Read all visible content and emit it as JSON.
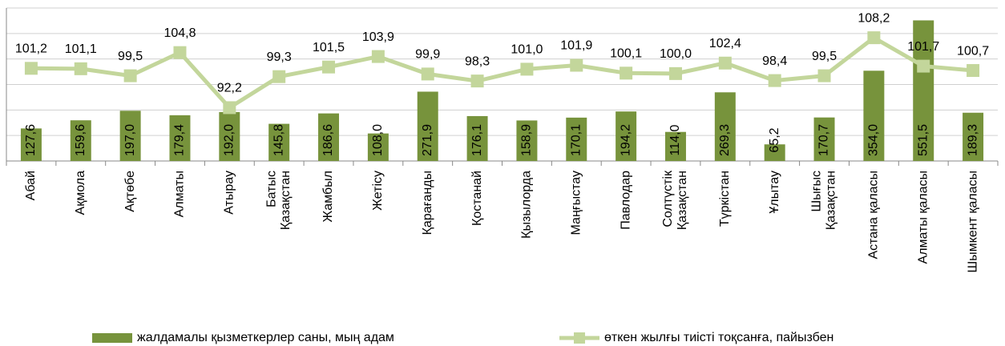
{
  "chart_data": {
    "type": "bar_line",
    "categories": [
      "Абай",
      "Ақмола",
      "Ақтөбе",
      "Алматы",
      "Атырау",
      "Батыс\nҚазақстан",
      "Жамбыл",
      "Жетісу",
      "Қарағанды",
      "Қостанай",
      "Қызылорда",
      "Маңғыстау",
      "Павлодар",
      "Солтүстік\nҚазақстан",
      "Түркістан",
      "Ұлытау",
      "Шығыс\nҚазақстан",
      "Астана қаласы",
      "Алматы қаласы",
      "Шымкент қаласы"
    ],
    "series": [
      {
        "name": "жалдамалы қызметкерлер саны, мың адам",
        "type": "bar",
        "color": "#77933c",
        "values": [
          127.6,
          159.6,
          197.0,
          179.4,
          192.0,
          145.8,
          186.6,
          108.0,
          271.9,
          176.1,
          158.9,
          170.1,
          194.2,
          114.0,
          269.3,
          65.2,
          170.7,
          354.0,
          551.5,
          189.3
        ],
        "value_labels": [
          "127,6",
          "159,6",
          "197,0",
          "179,4",
          "192,0",
          "145,8",
          "186,6",
          "108,0",
          "271,9",
          "176,1",
          "158,9",
          "170,1",
          "194,2",
          "114,0",
          "269,3",
          "65,2",
          "170,7",
          "354,0",
          "551,5",
          "189,3"
        ]
      },
      {
        "name": "өткен жылғы тиісті тоқсанға, пайызбен",
        "type": "line",
        "axis": "y2",
        "color": "#c3d69b",
        "values": [
          101.2,
          101.1,
          99.5,
          104.8,
          92.2,
          99.3,
          101.5,
          103.9,
          99.9,
          98.3,
          101.0,
          101.9,
          100.1,
          100.0,
          102.4,
          98.4,
          99.5,
          108.2,
          101.7,
          100.7
        ],
        "value_labels": [
          "101,2",
          "101,1",
          "99,5",
          "104,8",
          "92,2",
          "99,3",
          "101,5",
          "103,9",
          "99,9",
          "98,3",
          "101,0",
          "101,9",
          "100,1",
          "100,0",
          "102,4",
          "98,4",
          "99,5",
          "108,2",
          "101,7",
          "100,7"
        ]
      }
    ],
    "ylim": [
      0,
      600
    ],
    "yticks": [
      0,
      100,
      200,
      300,
      400,
      500,
      600
    ],
    "y2lim": [
      80,
      115
    ],
    "grid": true,
    "legend": "bottom"
  }
}
